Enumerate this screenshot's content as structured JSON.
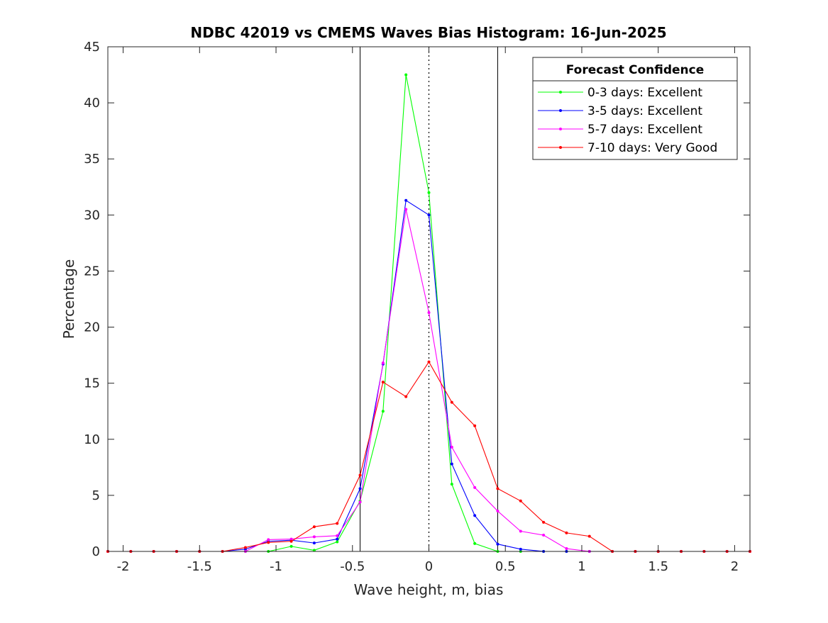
{
  "chart_data": {
    "type": "line",
    "title": "NDBC 42019 vs CMEMS Waves Bias Histogram: 16-Jun-2025",
    "xlabel": "Wave height, m, bias",
    "ylabel": "Percentage",
    "xlim": [
      -2.1,
      2.1
    ],
    "ylim": [
      0,
      45
    ],
    "xticks": [
      -2,
      -1.5,
      -1,
      -0.5,
      0,
      0.5,
      1,
      1.5,
      2
    ],
    "xtick_labels": [
      "-2",
      "-1.5",
      "-1",
      "-0.5",
      "0",
      "0.5",
      "1",
      "1.5",
      "2"
    ],
    "yticks": [
      0,
      5,
      10,
      15,
      20,
      25,
      30,
      35,
      40,
      45
    ],
    "ytick_labels": [
      "0",
      "5",
      "10",
      "15",
      "20",
      "25",
      "30",
      "35",
      "40",
      "45"
    ],
    "grid": false,
    "legend": {
      "title": "Forecast Confidence",
      "placement": "top-right"
    },
    "reference_lines": {
      "solid_vertical": [
        -0.45,
        0.45
      ],
      "dotted_vertical": [
        0
      ]
    },
    "x": [
      -2.1,
      -1.95,
      -1.8,
      -1.65,
      -1.5,
      -1.35,
      -1.2,
      -1.05,
      -0.9,
      -0.75,
      -0.6,
      -0.45,
      -0.3,
      -0.15,
      0,
      0.15,
      0.3,
      0.45,
      0.6,
      0.75,
      0.9,
      1.05,
      1.2,
      1.35,
      1.5,
      1.65,
      1.8,
      1.95,
      2.1
    ],
    "series": [
      {
        "name": "0-3 days: Excellent",
        "color": "#00ff00",
        "values": [
          0,
          0,
          0,
          0,
          0,
          0,
          0,
          0,
          0.45,
          0.1,
          0.85,
          4.5,
          12.5,
          42.5,
          32,
          6,
          0.7,
          0,
          0,
          0,
          0,
          0,
          0,
          0,
          0,
          0,
          0,
          0,
          0
        ]
      },
      {
        "name": "3-5 days: Excellent",
        "color": "#0000ff",
        "values": [
          0,
          0,
          0,
          0,
          0,
          0,
          0.2,
          0.9,
          1.0,
          0.75,
          1.1,
          5.6,
          16.7,
          31.3,
          30,
          7.8,
          3.2,
          0.65,
          0.2,
          0,
          0,
          0,
          0,
          0,
          0,
          0,
          0,
          0,
          0
        ]
      },
      {
        "name": "5-7 days: Excellent",
        "color": "#ff00ff",
        "values": [
          0,
          0,
          0,
          0,
          0,
          0,
          0,
          1.05,
          1.1,
          1.3,
          1.4,
          4.4,
          16.8,
          30.5,
          21.3,
          9.3,
          5.7,
          3.6,
          1.8,
          1.45,
          0.25,
          0,
          0,
          0,
          0,
          0,
          0,
          0,
          0
        ]
      },
      {
        "name": "7-10 days: Very Good",
        "color": "#ff0000",
        "values": [
          0,
          0,
          0,
          0,
          0,
          0,
          0.35,
          0.8,
          0.9,
          2.2,
          2.5,
          6.8,
          15.1,
          13.8,
          16.9,
          13.3,
          11.2,
          5.6,
          4.5,
          2.6,
          1.65,
          1.35,
          0,
          0,
          0,
          0,
          0,
          0,
          0
        ]
      }
    ]
  }
}
